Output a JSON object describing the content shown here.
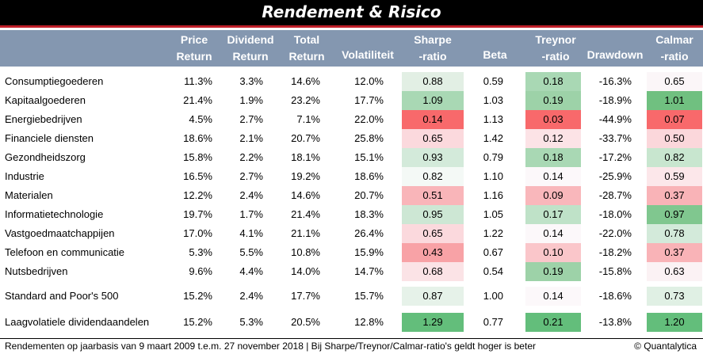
{
  "title": "Rendement & Risico",
  "headers": {
    "price_return": [
      "Price",
      "Return"
    ],
    "dividend_return": [
      "Dividend",
      "Return"
    ],
    "total_return": [
      "Total",
      "Return"
    ],
    "volatiliteit": "Volatiliteit",
    "sharpe": [
      "Sharpe",
      "-ratio"
    ],
    "beta": "Beta",
    "treynor": [
      "Treynor",
      "-ratio"
    ],
    "drawdown": "Drawdown",
    "calmar": [
      "Calmar",
      "-ratio"
    ]
  },
  "colors": {
    "header_bg": "#8497b0",
    "title_bg": "#000000",
    "title_border": "#c0202a"
  },
  "rows": [
    {
      "name": "Consumptiegoederen",
      "price": "11.3%",
      "dividend": "3.3%",
      "total": "14.6%",
      "vol": "12.0%",
      "sharpe": "0.88",
      "sharpe_bg": "#e2efe4",
      "beta": "0.59",
      "treynor": "0.18",
      "treynor_bg": "#a9d8b4",
      "drawdown": "-16.3%",
      "calmar": "0.65",
      "calmar_bg": "#fbf6f8"
    },
    {
      "name": "Kapitaalgoederen",
      "price": "21.4%",
      "dividend": "1.9%",
      "total": "23.2%",
      "vol": "17.7%",
      "sharpe": "1.09",
      "sharpe_bg": "#a9d8b4",
      "beta": "1.03",
      "treynor": "0.19",
      "treynor_bg": "#9dd2a8",
      "drawdown": "-18.9%",
      "calmar": "1.01",
      "calmar_bg": "#70c080"
    },
    {
      "name": "Energiebedrijven",
      "price": "4.5%",
      "dividend": "2.7%",
      "total": "7.1%",
      "vol": "22.0%",
      "sharpe": "0.14",
      "sharpe_bg": "#f8696b",
      "beta": "1.13",
      "treynor": "0.03",
      "treynor_bg": "#f8696b",
      "drawdown": "-44.9%",
      "calmar": "0.07",
      "calmar_bg": "#f8696b"
    },
    {
      "name": "Financiele diensten",
      "price": "18.6%",
      "dividend": "2.1%",
      "total": "20.7%",
      "vol": "25.8%",
      "sharpe": "0.65",
      "sharpe_bg": "#fbd9dd",
      "beta": "1.42",
      "treynor": "0.12",
      "treynor_bg": "#fce3e6",
      "drawdown": "-33.7%",
      "calmar": "0.50",
      "calmar_bg": "#fbd7db"
    },
    {
      "name": "Gezondheidszorg",
      "price": "15.8%",
      "dividend": "2.2%",
      "total": "18.1%",
      "vol": "15.1%",
      "sharpe": "0.93",
      "sharpe_bg": "#d3eada",
      "beta": "0.79",
      "treynor": "0.18",
      "treynor_bg": "#a9d8b4",
      "drawdown": "-17.2%",
      "calmar": "0.82",
      "calmar_bg": "#c8e6cf"
    },
    {
      "name": "Industrie",
      "price": "16.5%",
      "dividend": "2.7%",
      "total": "19.2%",
      "vol": "18.6%",
      "sharpe": "0.82",
      "sharpe_bg": "#f4f9f6",
      "beta": "1.10",
      "treynor": "0.14",
      "treynor_bg": "#fcf8fa",
      "drawdown": "-25.9%",
      "calmar": "0.59",
      "calmar_bg": "#fce7ea"
    },
    {
      "name": "Materialen",
      "price": "12.2%",
      "dividend": "2.4%",
      "total": "14.6%",
      "vol": "20.7%",
      "sharpe": "0.51",
      "sharpe_bg": "#f9b5b9",
      "beta": "1.16",
      "treynor": "0.09",
      "treynor_bg": "#f9b7bb",
      "drawdown": "-28.7%",
      "calmar": "0.37",
      "calmar_bg": "#f9b3b7"
    },
    {
      "name": "Informatietechnologie",
      "price": "19.7%",
      "dividend": "1.7%",
      "total": "21.4%",
      "vol": "18.3%",
      "sharpe": "0.95",
      "sharpe_bg": "#cde7d4",
      "beta": "1.05",
      "treynor": "0.17",
      "treynor_bg": "#bfe2c8",
      "drawdown": "-18.0%",
      "calmar": "0.97",
      "calmar_bg": "#80c78f"
    },
    {
      "name": "Vastgoedmaatchappijen",
      "price": "17.0%",
      "dividend": "4.1%",
      "total": "21.1%",
      "vol": "26.4%",
      "sharpe": "0.65",
      "sharpe_bg": "#fbd9dd",
      "beta": "1.22",
      "treynor": "0.14",
      "treynor_bg": "#fcf8fa",
      "drawdown": "-22.0%",
      "calmar": "0.78",
      "calmar_bg": "#d3eada"
    },
    {
      "name": "Telefoon en communicatie",
      "price": "5.3%",
      "dividend": "5.5%",
      "total": "10.8%",
      "vol": "15.9%",
      "sharpe": "0.43",
      "sharpe_bg": "#f8a2a6",
      "beta": "0.67",
      "treynor": "0.10",
      "treynor_bg": "#fac6ca",
      "drawdown": "-18.2%",
      "calmar": "0.37",
      "calmar_bg": "#f9b3b7"
    },
    {
      "name": "Nutsbedrijven",
      "price": "9.6%",
      "dividend": "4.4%",
      "total": "14.0%",
      "vol": "14.7%",
      "sharpe": "0.68",
      "sharpe_bg": "#fbe3e6",
      "beta": "0.54",
      "treynor": "0.19",
      "treynor_bg": "#9dd2a8",
      "drawdown": "-15.8%",
      "calmar": "0.63",
      "calmar_bg": "#fbf2f4"
    }
  ],
  "summary_rows": [
    {
      "name": "Standard and Poor's 500",
      "price": "15.2%",
      "dividend": "2.4%",
      "total": "17.7%",
      "vol": "15.7%",
      "sharpe": "0.87",
      "sharpe_bg": "#e6f2e9",
      "beta": "1.00",
      "treynor": "0.14",
      "treynor_bg": "#fcf8fa",
      "drawdown": "-18.6%",
      "calmar": "0.73",
      "calmar_bg": "#e0f0e4"
    },
    {
      "name": "Laagvolatiele dividendaandelen",
      "price": "15.2%",
      "dividend": "5.3%",
      "total": "20.5%",
      "vol": "12.8%",
      "sharpe": "1.29",
      "sharpe_bg": "#63be7b",
      "beta": "0.77",
      "treynor": "0.21",
      "treynor_bg": "#63be7b",
      "drawdown": "-13.8%",
      "calmar": "1.20",
      "calmar_bg": "#63be7b"
    }
  ],
  "footer": {
    "note": "Rendementen op jaarbasis van 9 maart 2009 t.e.m. 27 november 2018  |  Bij Sharpe/Treynor/Calmar-ratio's geldt hoger is beter",
    "copyright": "© Quantalytica"
  }
}
